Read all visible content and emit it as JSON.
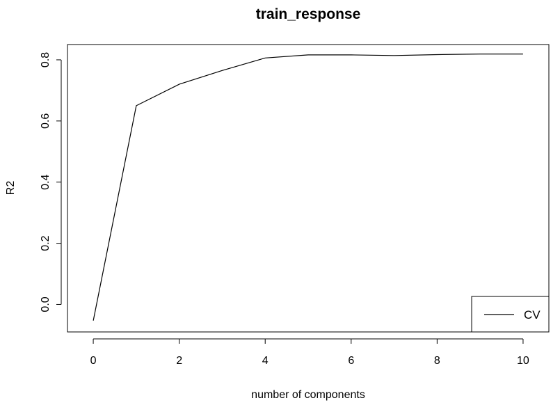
{
  "chart_data": {
    "type": "line",
    "title": "train_response",
    "xlabel": "number of components",
    "ylabel": "R2",
    "xlim": [
      -0.6,
      10.6
    ],
    "ylim": [
      -0.09,
      0.85
    ],
    "x_ticks": [
      0,
      2,
      4,
      6,
      8,
      10
    ],
    "y_ticks": [
      0.0,
      0.2,
      0.4,
      0.6,
      0.8
    ],
    "y_tick_labels": [
      "0.0",
      "0.2",
      "0.4",
      "0.6",
      "0.8"
    ],
    "grid": false,
    "legend": {
      "position": "bottom-right",
      "entries": [
        "CV"
      ]
    },
    "series": [
      {
        "name": "CV",
        "color": "#000000",
        "x": [
          0,
          1,
          2,
          3,
          4,
          5,
          6,
          7,
          8,
          9,
          10
        ],
        "y": [
          -0.053,
          0.65,
          0.72,
          0.765,
          0.806,
          0.816,
          0.816,
          0.814,
          0.817,
          0.819,
          0.819
        ]
      }
    ]
  }
}
